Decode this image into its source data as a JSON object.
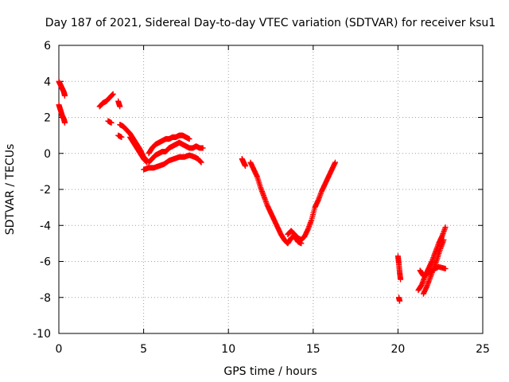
{
  "chart_data": {
    "type": "scatter",
    "title": "Day 187 of 2021, Sidereal Day-to-day VTEC variation (SDTVAR) for receiver ksu1",
    "xlabel": "GPS time / hours",
    "ylabel": "SDTVAR / TECUs",
    "xlim": [
      0,
      25
    ],
    "ylim": [
      -10,
      6
    ],
    "x_ticks": [
      0,
      5,
      10,
      15,
      20,
      25
    ],
    "y_ticks": [
      -10,
      -8,
      -6,
      -4,
      -2,
      0,
      2,
      4,
      6
    ],
    "grid": true,
    "marker": "+",
    "series": [
      {
        "name": "SDTVAR",
        "color": "#ff0000",
        "segments": [
          {
            "x": [
              0.0,
              0.1,
              0.2,
              0.3,
              0.35
            ],
            "y": [
              4.0,
              3.8,
              3.6,
              3.4,
              3.2
            ]
          },
          {
            "x": [
              0.0,
              0.1,
              0.2,
              0.3,
              0.35
            ],
            "y": [
              2.7,
              2.4,
              2.1,
              1.9,
              1.7
            ]
          },
          {
            "x": [
              2.4,
              2.6,
              2.8,
              3.0,
              3.2
            ],
            "y": [
              2.6,
              2.8,
              2.9,
              3.1,
              3.3
            ]
          },
          {
            "x": [
              3.5,
              3.6
            ],
            "y": [
              2.9,
              2.6
            ]
          },
          {
            "x": [
              2.9,
              3.1
            ],
            "y": [
              1.8,
              1.7
            ]
          },
          {
            "x": [
              3.5,
              3.7
            ],
            "y": [
              1.0,
              0.9
            ]
          },
          {
            "x": [
              3.6,
              3.8,
              4.0,
              4.2,
              4.4,
              4.6,
              4.8,
              5.0,
              5.2
            ],
            "y": [
              1.6,
              1.5,
              1.3,
              1.1,
              0.8,
              0.5,
              0.2,
              -0.2,
              -0.4
            ]
          },
          {
            "x": [
              4.2,
              4.4,
              4.6,
              4.8,
              5.0,
              5.2
            ],
            "y": [
              0.9,
              0.6,
              0.3,
              0.0,
              -0.3,
              -0.5
            ]
          },
          {
            "x": [
              5.3,
              5.5,
              5.7,
              5.9,
              6.1,
              6.3,
              6.5,
              6.7,
              6.9,
              7.1,
              7.3,
              7.5,
              7.7
            ],
            "y": [
              0.0,
              0.3,
              0.5,
              0.6,
              0.7,
              0.8,
              0.8,
              0.9,
              0.9,
              1.0,
              1.0,
              0.9,
              0.8
            ]
          },
          {
            "x": [
              5.3,
              5.5,
              5.7,
              5.9,
              6.1,
              6.3,
              6.5,
              6.7,
              6.9,
              7.1,
              7.3,
              7.5,
              7.7,
              7.9,
              8.1,
              8.3,
              8.5
            ],
            "y": [
              -0.5,
              -0.3,
              -0.1,
              0.0,
              0.1,
              0.1,
              0.3,
              0.4,
              0.5,
              0.6,
              0.5,
              0.4,
              0.3,
              0.3,
              0.4,
              0.3,
              0.3
            ]
          },
          {
            "x": [
              5.0,
              5.3,
              5.6,
              5.9,
              6.2,
              6.5,
              6.8,
              7.1,
              7.4,
              7.7,
              8.0,
              8.2,
              8.4
            ],
            "y": [
              -0.9,
              -0.8,
              -0.8,
              -0.7,
              -0.6,
              -0.4,
              -0.3,
              -0.2,
              -0.2,
              -0.1,
              -0.2,
              -0.3,
              -0.5
            ]
          },
          {
            "x": [
              10.8,
              10.9,
              11.0
            ],
            "y": [
              -0.3,
              -0.5,
              -0.7
            ]
          },
          {
            "x": [
              11.3,
              11.5,
              11.7,
              11.9,
              12.1,
              12.3,
              12.5,
              12.7,
              12.9,
              13.1,
              13.3,
              13.5,
              13.7,
              13.9,
              14.1,
              14.3
            ],
            "y": [
              -0.5,
              -0.9,
              -1.3,
              -1.9,
              -2.4,
              -2.9,
              -3.3,
              -3.7,
              -4.1,
              -4.5,
              -4.8,
              -5.0,
              -4.7,
              -4.6,
              -4.9,
              -5.0
            ]
          },
          {
            "x": [
              13.5,
              13.7,
              13.9,
              14.1,
              14.3,
              14.5,
              14.7,
              14.9,
              15.1,
              15.3,
              15.5,
              15.7,
              15.9,
              16.1,
              16.3
            ],
            "y": [
              -4.5,
              -4.3,
              -4.5,
              -4.7,
              -4.8,
              -4.6,
              -4.2,
              -3.7,
              -3.0,
              -2.6,
              -2.1,
              -1.7,
              -1.3,
              -0.9,
              -0.5
            ]
          },
          {
            "x": [
              20.0,
              20.05,
              20.1,
              20.15
            ],
            "y": [
              -5.7,
              -6.1,
              -6.6,
              -7.0
            ]
          },
          {
            "x": [
              20.05,
              20.1
            ],
            "y": [
              -8.0,
              -8.2
            ]
          },
          {
            "x": [
              21.2,
              21.4,
              21.6,
              21.8,
              22.0,
              22.2,
              22.4,
              22.6,
              22.8
            ],
            "y": [
              -7.6,
              -7.3,
              -6.8,
              -6.4,
              -6.0,
              -5.5,
              -5.0,
              -4.6,
              -4.1
            ]
          },
          {
            "x": [
              21.5,
              21.7,
              21.9,
              22.1,
              22.3,
              22.5,
              22.7
            ],
            "y": [
              -7.8,
              -7.4,
              -6.9,
              -6.4,
              -5.9,
              -5.3,
              -4.8
            ]
          },
          {
            "x": [
              21.3,
              21.5,
              21.7,
              22.0,
              22.4,
              22.8
            ],
            "y": [
              -6.5,
              -6.8,
              -6.7,
              -6.5,
              -6.3,
              -6.4
            ]
          }
        ]
      }
    ]
  }
}
